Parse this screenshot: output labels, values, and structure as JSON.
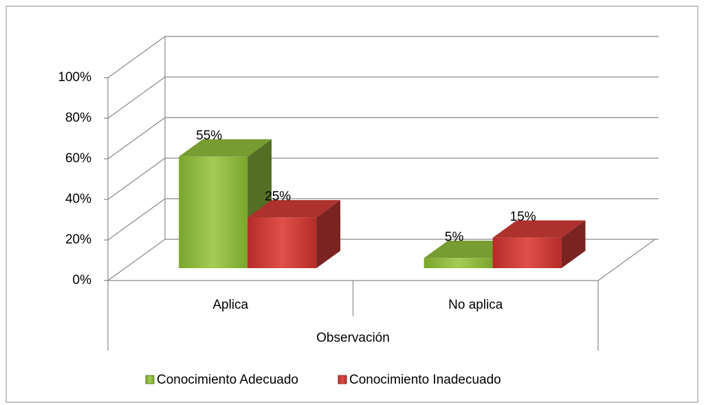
{
  "chart_data": {
    "type": "bar3d",
    "categories": [
      "Aplica",
      "No aplica"
    ],
    "group_label": "Observación",
    "series": [
      {
        "name": "Conocimiento Adecuado",
        "color": "#8cb83b",
        "values": [
          55,
          5
        ],
        "value_labels": [
          "55%",
          "5%"
        ]
      },
      {
        "name": "Conocimiento Inadecuado",
        "color": "#cc3a35",
        "values": [
          25,
          15
        ],
        "value_labels": [
          "25%",
          "15%"
        ]
      }
    ],
    "ylim": [
      0,
      100
    ],
    "yticks": [
      {
        "value": 0,
        "label": "0%"
      },
      {
        "value": 20,
        "label": "20%"
      },
      {
        "value": 40,
        "label": "40%"
      },
      {
        "value": 60,
        "label": "60%"
      },
      {
        "value": 80,
        "label": "80%"
      },
      {
        "value": 100,
        "label": "100%"
      }
    ],
    "grid": true,
    "legend": "bottom"
  }
}
